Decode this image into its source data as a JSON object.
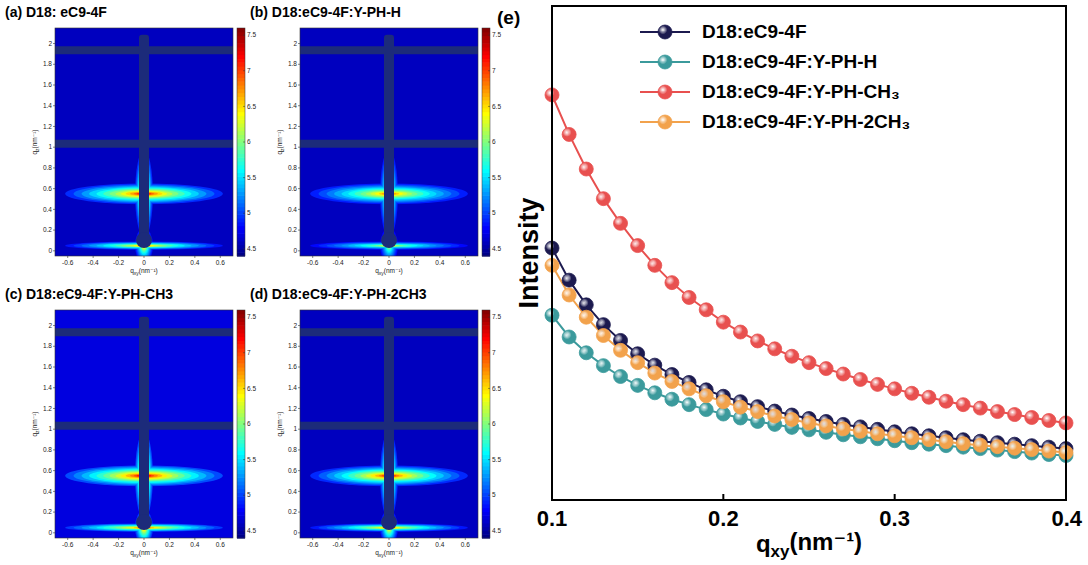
{
  "chart_data": [
    {
      "type": "heatmap",
      "title": "(a) D18: eC9-4F",
      "x_label": "qxy(nm⁻¹)",
      "y_label": "qz(nm⁻¹)",
      "xlim": [
        -0.7,
        0.7
      ],
      "ylim": [
        -0.05,
        2.15
      ],
      "xticks": [
        -0.6,
        -0.4,
        -0.2,
        0,
        0.2,
        0.4,
        0.6
      ],
      "yticks": [
        0,
        0.2,
        0.4,
        0.6,
        0.8,
        1,
        1.2,
        1.4,
        1.6,
        1.8,
        2
      ],
      "colorbar_range": [
        4.4,
        7.6
      ],
      "colorbar_ticks": [
        4.5,
        5,
        5.5,
        6,
        6.5,
        7,
        7.5
      ],
      "background": 4.6,
      "peaks": [
        {
          "q_xy": 0,
          "q_z": 0.55,
          "intensity": 7.4
        },
        {
          "q_xy": 0,
          "q_z": 0.05,
          "intensity": 6.8
        }
      ]
    },
    {
      "type": "heatmap",
      "title": "(b) D18:eC9-4F:Y-PH-H",
      "x_label": "qxy(nm⁻¹)",
      "y_label": "qz(nm⁻¹)",
      "xlim": [
        -0.7,
        0.7
      ],
      "ylim": [
        -0.05,
        2.15
      ],
      "xticks": [
        -0.6,
        -0.4,
        -0.2,
        0,
        0.2,
        0.4,
        0.6
      ],
      "yticks": [
        0,
        0.2,
        0.4,
        0.6,
        0.8,
        1,
        1.2,
        1.4,
        1.6,
        1.8,
        2
      ],
      "colorbar_range": [
        4.4,
        7.6
      ],
      "colorbar_ticks": [
        4.5,
        5,
        5.5,
        6,
        6.5,
        7,
        7.5
      ],
      "background": 4.6,
      "peaks": [
        {
          "q_xy": 0,
          "q_z": 0.55,
          "intensity": 7.0
        },
        {
          "q_xy": 0,
          "q_z": 0.05,
          "intensity": 6.4
        }
      ]
    },
    {
      "type": "heatmap",
      "title": "(c) D18:eC9-4F:Y-PH-CH3",
      "x_label": "qxy(nm⁻¹)",
      "y_label": "qz(nm⁻¹)",
      "xlim": [
        -0.7,
        0.7
      ],
      "ylim": [
        -0.05,
        2.15
      ],
      "xticks": [
        -0.6,
        -0.4,
        -0.2,
        0,
        0.2,
        0.4,
        0.6
      ],
      "yticks": [
        0,
        0.2,
        0.4,
        0.6,
        0.8,
        1,
        1.2,
        1.4,
        1.6,
        1.8,
        2
      ],
      "colorbar_range": [
        4.4,
        7.6
      ],
      "colorbar_ticks": [
        4.5,
        5,
        5.5,
        6,
        6.5,
        7,
        7.5
      ],
      "background": 4.7,
      "peaks": [
        {
          "q_xy": 0,
          "q_z": 0.55,
          "intensity": 7.5
        },
        {
          "q_xy": 0,
          "q_z": 0.05,
          "intensity": 7.0
        }
      ]
    },
    {
      "type": "heatmap",
      "title": "(d) D18:eC9-4F:Y-PH-2CH3",
      "x_label": "qxy(nm⁻¹)",
      "y_label": "qz(nm⁻¹)",
      "xlim": [
        -0.7,
        0.7
      ],
      "ylim": [
        -0.05,
        2.15
      ],
      "xticks": [
        -0.6,
        -0.4,
        -0.2,
        0,
        0.2,
        0.4,
        0.6
      ],
      "yticks": [
        0,
        0.2,
        0.4,
        0.6,
        0.8,
        1,
        1.2,
        1.4,
        1.6,
        1.8,
        2
      ],
      "colorbar_range": [
        4.4,
        7.6
      ],
      "colorbar_ticks": [
        4.5,
        5,
        5.5,
        6,
        6.5,
        7,
        7.5
      ],
      "background": 4.6,
      "peaks": [
        {
          "q_xy": 0,
          "q_z": 0.55,
          "intensity": 7.3
        },
        {
          "q_xy": 0,
          "q_z": 0.05,
          "intensity": 6.8
        }
      ]
    },
    {
      "type": "line",
      "title": "(e)",
      "x_label": "qxy(nm⁻¹)",
      "y_label": "Intensity",
      "x": [
        0.1,
        0.11,
        0.12,
        0.13,
        0.14,
        0.15,
        0.16,
        0.17,
        0.18,
        0.19,
        0.2,
        0.21,
        0.22,
        0.23,
        0.24,
        0.25,
        0.26,
        0.27,
        0.28,
        0.29,
        0.3,
        0.31,
        0.32,
        0.33,
        0.34,
        0.35,
        0.36,
        0.37,
        0.38,
        0.39,
        0.4
      ],
      "xlim": [
        0.1,
        0.4
      ],
      "xticks": [
        0.1,
        0.2,
        0.3,
        0.4
      ],
      "ylim": [
        0,
        100
      ],
      "tick_labels": "x",
      "legend": "upper right",
      "marker": "circle",
      "series": [
        {
          "name": "D18:eC9-4F",
          "color": "#1c1a4f",
          "values": [
            51,
            44.5,
            39.5,
            35.5,
            32.3,
            29.6,
            27.3,
            25.4,
            23.8,
            22.3,
            21,
            19.9,
            18.9,
            18,
            17.2,
            16.5,
            15.9,
            15.3,
            14.8,
            14.3,
            13.8,
            13.4,
            13,
            12.6,
            12.2,
            11.9,
            11.6,
            11.3,
            11,
            10.7,
            10.4
          ]
        },
        {
          "name": "D18:eC9-4F:Y-PH-H",
          "color": "#3b9a9c",
          "values": [
            37.4,
            33,
            29.8,
            27.2,
            25,
            23.2,
            21.7,
            20.4,
            19.3,
            18.3,
            17.4,
            16.6,
            15.9,
            15.3,
            14.7,
            14.2,
            13.7,
            13.2,
            12.8,
            12.4,
            12,
            11.6,
            11.3,
            11,
            10.7,
            10.4,
            10.1,
            9.8,
            9.5,
            9.2,
            9
          ]
        },
        {
          "name": "D18:eC9-4F:Y-PH-CH₃",
          "color": "#e8504f",
          "values": [
            82,
            74,
            67,
            61,
            56,
            51.5,
            47.5,
            44,
            41,
            38.5,
            36,
            34,
            32.2,
            30.6,
            29.1,
            27.8,
            26.6,
            25.5,
            24.4,
            23.4,
            22.5,
            21.6,
            20.8,
            20,
            19.3,
            18.6,
            17.9,
            17.3,
            16.7,
            16.1,
            15.6
          ]
        },
        {
          "name": "D18:eC9-4F:Y-PH-2CH₃",
          "color": "#f2a24c",
          "values": [
            47.5,
            41.5,
            37,
            33.3,
            30.3,
            27.8,
            25.7,
            24,
            22.5,
            21.1,
            19.9,
            18.8,
            17.9,
            17,
            16.3,
            15.6,
            15,
            14.4,
            13.9,
            13.4,
            13,
            12.6,
            12.2,
            11.8,
            11.4,
            11.1,
            10.8,
            10.5,
            10.2,
            9.9,
            9.6
          ]
        }
      ]
    }
  ]
}
